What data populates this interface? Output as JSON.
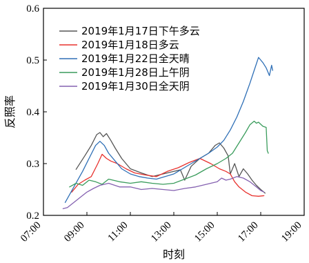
{
  "chart_data": {
    "type": "line",
    "xlabel": "时刻",
    "ylabel": "反照率",
    "xlim": [
      7,
      19
    ],
    "ylim": [
      0.2,
      0.6
    ],
    "xticks": [
      {
        "value": 7,
        "label": "07:00"
      },
      {
        "value": 9,
        "label": "09:00"
      },
      {
        "value": 11,
        "label": "11:00"
      },
      {
        "value": 13,
        "label": "13:00"
      },
      {
        "value": 15,
        "label": "15:00"
      },
      {
        "value": 17,
        "label": "17:00"
      },
      {
        "value": 19,
        "label": "19:00"
      }
    ],
    "yticks": [
      {
        "value": 0.2,
        "label": "0.2"
      },
      {
        "value": 0.3,
        "label": "0.3"
      },
      {
        "value": 0.4,
        "label": "0.4"
      },
      {
        "value": 0.5,
        "label": "0.5"
      },
      {
        "value": 0.6,
        "label": "0.6"
      }
    ],
    "legend_position": "top-left",
    "series": [
      {
        "name": "2019年1月17日下午多云",
        "color": "#555555",
        "x": [
          8.5,
          8.9,
          9.2,
          9.45,
          9.6,
          9.75,
          9.9,
          10.1,
          10.3,
          10.6,
          11.0,
          11.5,
          12.0,
          12.5,
          13.0,
          13.3,
          13.5,
          13.8,
          14.2,
          14.6,
          14.9,
          15.1,
          15.3,
          15.5,
          15.6,
          15.8,
          16.0,
          16.2,
          16.4,
          16.6,
          16.8,
          17.0,
          17.2
        ],
        "y": [
          0.289,
          0.315,
          0.335,
          0.356,
          0.36,
          0.352,
          0.358,
          0.345,
          0.33,
          0.31,
          0.29,
          0.282,
          0.275,
          0.28,
          0.285,
          0.288,
          0.268,
          0.295,
          0.31,
          0.32,
          0.335,
          0.34,
          0.33,
          0.315,
          0.28,
          0.3,
          0.275,
          0.29,
          0.28,
          0.268,
          0.258,
          0.25,
          0.243
        ]
      },
      {
        "name": "2019年1月18日多云",
        "color": "#e8312d",
        "x": [
          8.3,
          8.6,
          8.9,
          9.2,
          9.5,
          9.7,
          9.9,
          10.1,
          10.4,
          10.8,
          11.2,
          11.7,
          12.2,
          12.7,
          13.2,
          13.7,
          14.2,
          14.7,
          15.1,
          15.4,
          15.6,
          15.8,
          16.0,
          16.3,
          16.6,
          16.9,
          17.15
        ],
        "y": [
          0.245,
          0.26,
          0.268,
          0.275,
          0.3,
          0.318,
          0.31,
          0.305,
          0.3,
          0.29,
          0.282,
          0.278,
          0.275,
          0.285,
          0.292,
          0.302,
          0.31,
          0.3,
          0.29,
          0.285,
          0.28,
          0.265,
          0.255,
          0.245,
          0.238,
          0.237,
          0.238
        ]
      },
      {
        "name": "2019年1月22日全天晴",
        "color": "#2e6fb6",
        "x": [
          8.0,
          8.4,
          8.8,
          9.1,
          9.4,
          9.6,
          9.8,
          10.0,
          10.3,
          10.6,
          11.0,
          11.4,
          11.8,
          12.2,
          12.6,
          13.0,
          13.4,
          13.8,
          14.2,
          14.6,
          15.0,
          15.3,
          15.6,
          15.9,
          16.2,
          16.5,
          16.7,
          16.9,
          17.0,
          17.1,
          17.25,
          17.4,
          17.5,
          17.55
        ],
        "y": [
          0.225,
          0.255,
          0.285,
          0.31,
          0.335,
          0.343,
          0.335,
          0.32,
          0.305,
          0.29,
          0.28,
          0.275,
          0.272,
          0.27,
          0.275,
          0.28,
          0.29,
          0.3,
          0.31,
          0.32,
          0.332,
          0.345,
          0.365,
          0.39,
          0.42,
          0.455,
          0.48,
          0.505,
          0.5,
          0.495,
          0.485,
          0.47,
          0.49,
          0.48
        ]
      },
      {
        "name": "2019年1月28日上午阴",
        "color": "#3a9c5c",
        "x": [
          8.2,
          8.5,
          8.8,
          9.1,
          9.4,
          9.7,
          10.0,
          10.5,
          11.0,
          11.5,
          12.0,
          12.5,
          13.0,
          13.5,
          14.0,
          14.5,
          15.0,
          15.4,
          15.7,
          16.0,
          16.3,
          16.5,
          16.7,
          16.8,
          16.9,
          17.1,
          17.25,
          17.3,
          17.35
        ],
        "y": [
          0.255,
          0.262,
          0.258,
          0.268,
          0.265,
          0.26,
          0.27,
          0.265,
          0.262,
          0.265,
          0.262,
          0.26,
          0.262,
          0.27,
          0.278,
          0.29,
          0.3,
          0.31,
          0.32,
          0.34,
          0.36,
          0.375,
          0.382,
          0.378,
          0.38,
          0.372,
          0.37,
          0.325,
          0.32
        ]
      },
      {
        "name": "2019年1月30日全天阴",
        "color": "#8460b0",
        "x": [
          7.9,
          8.1,
          8.4,
          8.7,
          9.0,
          9.3,
          9.6,
          10.0,
          10.5,
          11.0,
          11.5,
          12.0,
          12.5,
          13.0,
          13.5,
          14.0,
          14.5,
          15.0,
          15.2,
          15.4,
          15.6,
          15.9,
          16.2,
          16.5,
          16.8,
          17.0,
          17.15
        ],
        "y": [
          0.213,
          0.215,
          0.225,
          0.235,
          0.245,
          0.252,
          0.258,
          0.262,
          0.255,
          0.255,
          0.25,
          0.252,
          0.25,
          0.248,
          0.252,
          0.255,
          0.26,
          0.265,
          0.272,
          0.268,
          0.27,
          0.275,
          0.272,
          0.265,
          0.255,
          0.248,
          0.245
        ]
      }
    ]
  }
}
